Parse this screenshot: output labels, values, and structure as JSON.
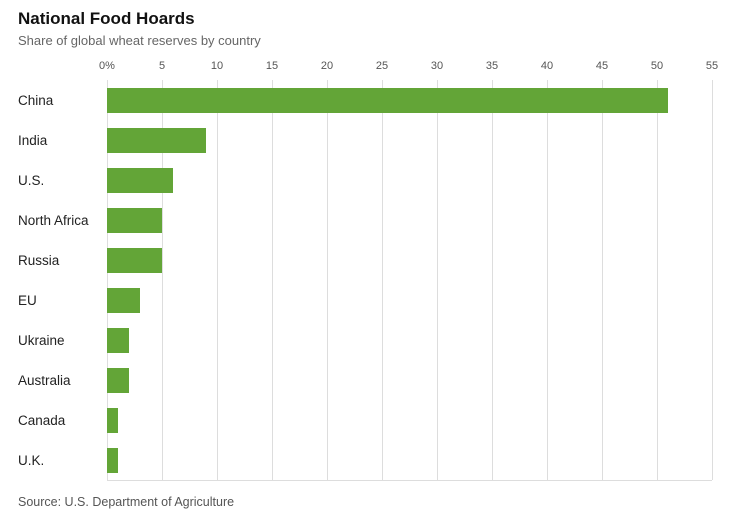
{
  "header": {
    "title": "National Food Hoards",
    "subtitle": "Share of global wheat reserves by country"
  },
  "footer": {
    "source": "Source: U.S. Department of Agriculture"
  },
  "chart_data": {
    "type": "bar",
    "orientation": "horizontal",
    "title": "National Food Hoards",
    "subtitle": "Share of global wheat reserves by country",
    "xlabel": "",
    "ylabel": "",
    "xlim": [
      0,
      55
    ],
    "grid": "vertical",
    "legend": "none",
    "bar_color": "#63a537",
    "categories": [
      "China",
      "India",
      "U.S.",
      "North Africa",
      "Russia",
      "EU",
      "Ukraine",
      "Australia",
      "Canada",
      "U.K."
    ],
    "values": [
      51,
      9,
      6,
      5,
      5,
      3,
      2,
      2,
      1,
      1
    ],
    "ticks": [
      {
        "value": 0,
        "label": "0%"
      },
      {
        "value": 5,
        "label": "5"
      },
      {
        "value": 10,
        "label": "10"
      },
      {
        "value": 15,
        "label": "15"
      },
      {
        "value": 20,
        "label": "20"
      },
      {
        "value": 25,
        "label": "25"
      },
      {
        "value": 30,
        "label": "30"
      },
      {
        "value": 35,
        "label": "35"
      },
      {
        "value": 40,
        "label": "40"
      },
      {
        "value": 45,
        "label": "45"
      },
      {
        "value": 50,
        "label": "50"
      },
      {
        "value": 55,
        "label": "55"
      }
    ]
  }
}
